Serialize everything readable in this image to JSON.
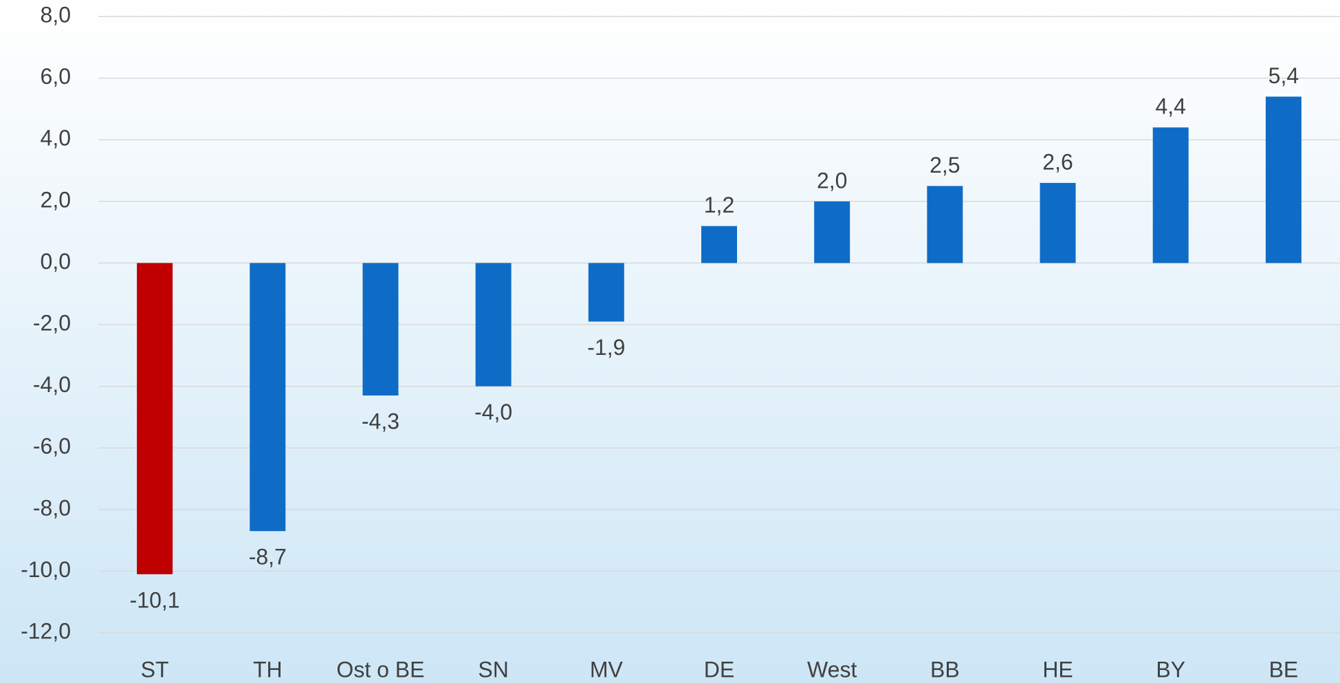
{
  "chart_data": {
    "type": "bar",
    "categories": [
      "ST",
      "TH",
      "Ost o BE",
      "SN",
      "MV",
      "DE",
      "West",
      "BB",
      "HE",
      "BY",
      "BE"
    ],
    "values": [
      -10.1,
      -8.7,
      -4.3,
      -4.0,
      -1.9,
      1.2,
      2.0,
      2.5,
      2.6,
      4.4,
      5.4
    ],
    "value_labels": [
      "-10,1",
      "-8,7",
      "-4,3",
      "-4,0",
      "-1,9",
      "1,2",
      "2,0",
      "2,5",
      "2,6",
      "4,4",
      "5,4"
    ],
    "colors": [
      "#c00000",
      "#0f6cc6",
      "#0f6cc6",
      "#0f6cc6",
      "#0f6cc6",
      "#0f6cc6",
      "#0f6cc6",
      "#0f6cc6",
      "#0f6cc6",
      "#0f6cc6",
      "#0f6cc6"
    ],
    "ylim": [
      -12,
      8
    ],
    "yticks": [
      {
        "value": -12,
        "label": "-12,0"
      },
      {
        "value": -10,
        "label": "-10,0"
      },
      {
        "value": -8,
        "label": "-8,0"
      },
      {
        "value": -6,
        "label": "-6,0"
      },
      {
        "value": -4,
        "label": "-4,0"
      },
      {
        "value": -2,
        "label": "-2,0"
      },
      {
        "value": 0,
        "label": "0,0"
      },
      {
        "value": 2,
        "label": "2,0"
      },
      {
        "value": 4,
        "label": "4,0"
      },
      {
        "value": 6,
        "label": "6,0"
      },
      {
        "value": 8,
        "label": "8,0"
      }
    ],
    "grid": true
  }
}
